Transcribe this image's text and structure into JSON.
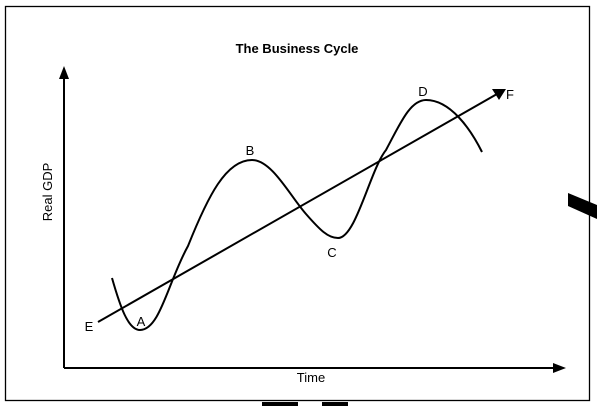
{
  "title": "The Business Cycle",
  "axes": {
    "y_label": "Real GDP",
    "x_label": "Time"
  },
  "points": {
    "A": "A",
    "B": "B",
    "C": "C",
    "D": "D",
    "E": "E",
    "F": "F"
  }
}
